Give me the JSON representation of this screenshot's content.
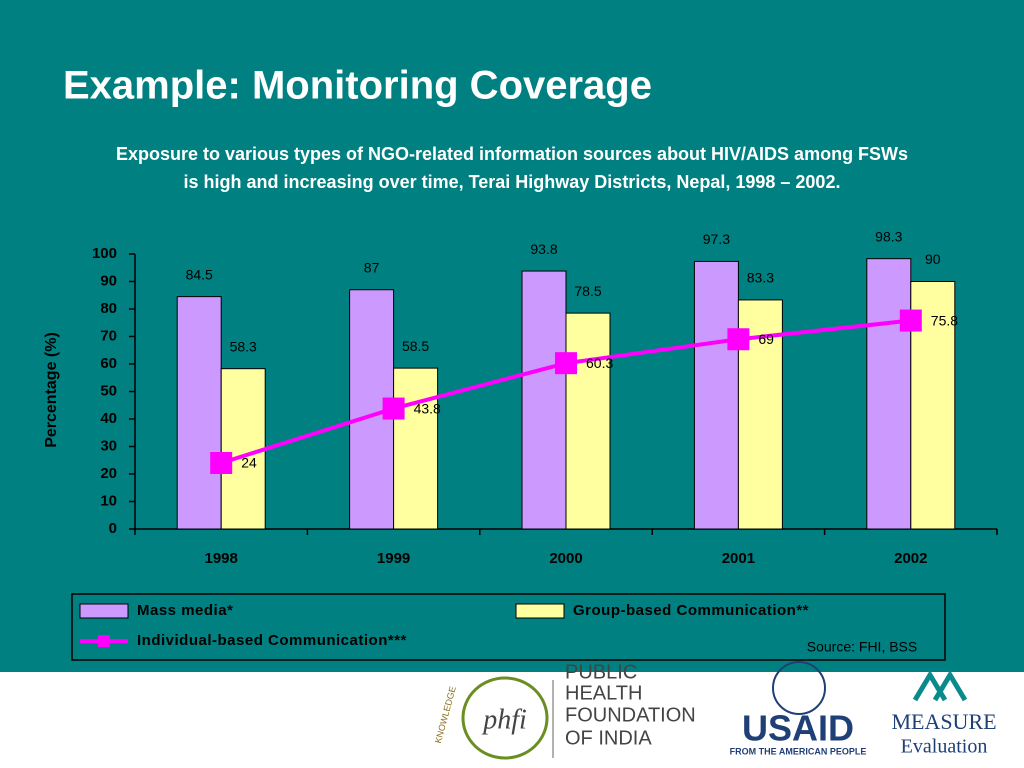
{
  "title": "Example: Monitoring Coverage",
  "subtitle": [
    "Exposure to various types of NGO-related information sources about HIV/AIDS among FSWs",
    "is high and increasing over time, Terai Highway Districts, Nepal, 1998 – 2002."
  ],
  "chart_data": {
    "type": "bar",
    "categories": [
      "1998",
      "1999",
      "2000",
      "2001",
      "2002"
    ],
    "series": [
      {
        "name": "Mass media*",
        "color": "#cc99ff",
        "values": [
          84.5,
          87,
          93.8,
          97.3,
          98.3
        ]
      },
      {
        "name": "Group-based Communication**",
        "color": "#ffffa0",
        "values": [
          58.3,
          58.5,
          78.5,
          83.3,
          90
        ]
      },
      {
        "name": "Individual-based Communication***",
        "color": "#ff00ff",
        "type": "line",
        "values": [
          24,
          43.8,
          60.3,
          69,
          75.8
        ]
      }
    ],
    "ylabel": "Percentage (%)",
    "ylim": [
      0,
      100
    ],
    "yticks": [
      0,
      10,
      20,
      30,
      40,
      50,
      60,
      70,
      80,
      90,
      100
    ],
    "legend": "bottom",
    "source": "Source: FHI, BSS"
  },
  "logos": {
    "phfi": "phfi",
    "knowledge": "KNOWLEDGE",
    "phfi_name": [
      "PUBLIC",
      "HEALTH",
      "FOUNDATION",
      "OF INDIA"
    ],
    "usaid": "USAID",
    "usaid_tag": "FROM THE AMERICAN PEOPLE",
    "measure": "MEASURE",
    "evaluation": "Evaluation"
  }
}
